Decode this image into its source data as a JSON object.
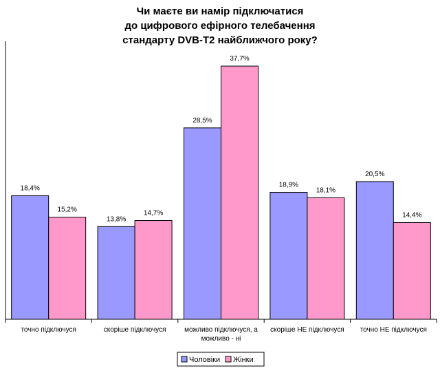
{
  "chart_data": {
    "type": "bar",
    "title": [
      "Чи маєте ви намір підключатися",
      "до цифрового ефірного телебачення",
      "стандарту DVB-T2 найближчого року?"
    ],
    "categories": [
      [
        "точно підключуся"
      ],
      [
        "скоріше підключуся"
      ],
      [
        "можливо підключуся, а",
        "можливо - ні"
      ],
      [
        "скоріше НЕ підключуся"
      ],
      [
        "точно НЕ підключуся"
      ]
    ],
    "series": [
      {
        "name": "Чоловіки",
        "color": "#9999ff",
        "values": [
          18.4,
          13.8,
          28.5,
          18.9,
          20.5
        ],
        "labels": [
          "18,4%",
          "13,8%",
          "28,5%",
          "18,9%",
          "20,5%"
        ]
      },
      {
        "name": "Жінки",
        "color": "#ff99cc",
        "values": [
          15.2,
          14.7,
          37.7,
          18.1,
          14.4
        ],
        "labels": [
          "15,2%",
          "14,7%",
          "37,7%",
          "18,1%",
          "14,4%"
        ]
      }
    ],
    "ylim": [
      0,
      40
    ],
    "grid": false,
    "legend_position": "bottom"
  }
}
